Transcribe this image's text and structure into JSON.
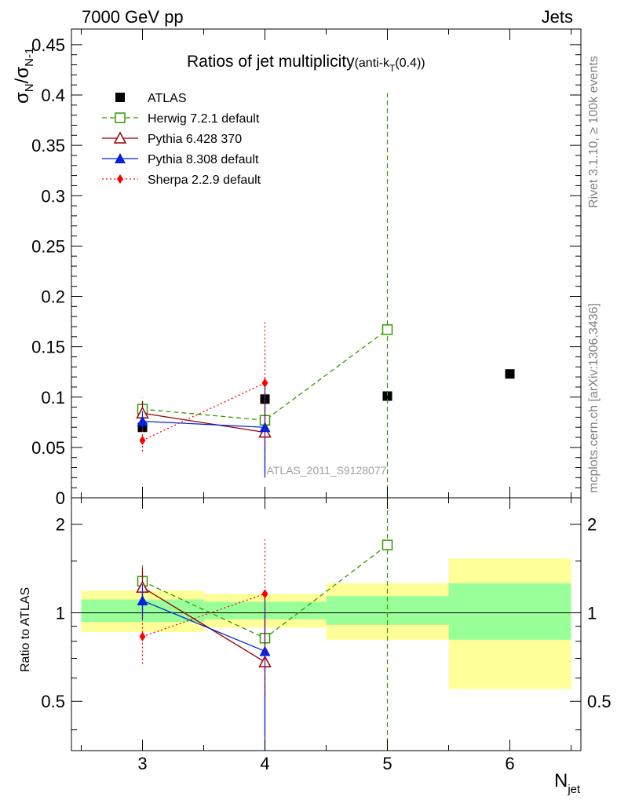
{
  "header": {
    "left": "7000 GeV pp",
    "right": "Jets"
  },
  "side_text": {
    "rivet": "Rivet 3.1.10, ≥ 100k events",
    "mcplots": "mcplots.cern.ch [arXiv:1306.3436]"
  },
  "watermark": "ATLAS_2011_S9128077",
  "chart_data": [
    {
      "type": "scatter",
      "panel": "main",
      "title": "Ratios of jet multiplicity(anti-k_T(0.4))",
      "title_main": "Ratios of jet multiplicity",
      "title_small": "(anti-k",
      "title_sub": "T",
      "title_tail": "(0.4))",
      "ylabel": "σN/σN-1",
      "ylabel_sigma1": "σ",
      "ylabel_sub1": "N",
      "ylabel_slash": "/σ",
      "ylabel_sub2": "N-1",
      "xlim": [
        2.42,
        6.58
      ],
      "ylim": [
        0,
        0.4655
      ],
      "yticks": [
        {
          "v": 0,
          "label": "0"
        },
        {
          "v": 0.05,
          "label": "0.05"
        },
        {
          "v": 0.1,
          "label": "0.1"
        },
        {
          "v": 0.15,
          "label": "0.15"
        },
        {
          "v": 0.2,
          "label": "0.2"
        },
        {
          "v": 0.25,
          "label": "0.25"
        },
        {
          "v": 0.3,
          "label": "0.3"
        },
        {
          "v": 0.35,
          "label": "0.35"
        },
        {
          "v": 0.4,
          "label": "0.4"
        },
        {
          "v": 0.45,
          "label": "0.45"
        }
      ],
      "series": [
        {
          "name": "ATLAS",
          "color": "#000000",
          "marker": "square-filled",
          "line": "none",
          "points": [
            {
              "x": 3,
              "y": 0.07,
              "err": 0.004
            },
            {
              "x": 4,
              "y": 0.098,
              "err": 0.004
            },
            {
              "x": 5,
              "y": 0.101,
              "err": 0.003
            },
            {
              "x": 6,
              "y": 0.123,
              "err": 0.003
            }
          ]
        },
        {
          "name": "Herwig 7.2.1 default",
          "color": "#339900",
          "marker": "square-open",
          "line": "dashed",
          "points": [
            {
              "x": 3,
              "y": 0.088,
              "err": 0.012
            },
            {
              "x": 4,
              "y": 0.077,
              "err": 0.04
            },
            {
              "x": 5,
              "y": 0.167,
              "err": 0.235
            }
          ]
        },
        {
          "name": "Pythia 6.428 370",
          "color": "#990000",
          "marker": "triangle-open",
          "line": "solid",
          "points": [
            {
              "x": 3,
              "y": 0.084,
              "err": 0.012
            },
            {
              "x": 4,
              "y": 0.065,
              "err": 0.04
            }
          ]
        },
        {
          "name": "Pythia 8.308 default",
          "color": "#0022dd",
          "marker": "triangle-filled",
          "line": "solid",
          "points": [
            {
              "x": 3,
              "y": 0.076,
              "err": 0.01
            },
            {
              "x": 4,
              "y": 0.07,
              "err": 0.05
            }
          ]
        },
        {
          "name": "Sherpa 2.2.9 default",
          "color": "#ff0000",
          "marker": "diamond-filled",
          "line": "dotted",
          "points": [
            {
              "x": 3,
              "y": 0.057,
              "err": 0.011
            },
            {
              "x": 4,
              "y": 0.114,
              "err": 0.062
            }
          ]
        }
      ]
    },
    {
      "type": "scatter",
      "panel": "ratio",
      "ylabel": "Ratio to ATLAS",
      "xlabel": "N_jet",
      "xlabel_main": "N",
      "xlabel_sub": "jet",
      "xlim": [
        2.42,
        6.58
      ],
      "ylim": [
        0.34,
        2.46
      ],
      "xticks": [
        {
          "v": 3,
          "label": "3"
        },
        {
          "v": 4,
          "label": "4"
        },
        {
          "v": 5,
          "label": "5"
        },
        {
          "v": 6,
          "label": "6"
        }
      ],
      "yticks": [
        {
          "v": 0.5,
          "label": "0.5"
        },
        {
          "v": 1,
          "label": "1"
        },
        {
          "v": 2,
          "label": "2"
        }
      ],
      "bands": [
        {
          "x0": 2.5,
          "x1": 3.5,
          "inner": [
            0.93,
            1.11
          ],
          "outer": [
            0.86,
            1.19
          ]
        },
        {
          "x0": 3.5,
          "x1": 4.5,
          "inner": [
            0.95,
            1.09
          ],
          "outer": [
            0.89,
            1.16
          ]
        },
        {
          "x0": 4.5,
          "x1": 5.5,
          "inner": [
            0.91,
            1.14
          ],
          "outer": [
            0.81,
            1.26
          ]
        },
        {
          "x0": 5.5,
          "x1": 6.5,
          "inner": [
            0.81,
            1.26
          ],
          "outer": [
            0.55,
            1.53
          ]
        }
      ],
      "series": [
        {
          "name": "Herwig 7.2.1 default",
          "color": "#339900",
          "marker": "square-open",
          "line": "dashed",
          "points": [
            {
              "x": 3,
              "y": 1.28,
              "err": 0.17
            },
            {
              "x": 4,
              "y": 0.82,
              "err": 0.3
            },
            {
              "x": 5,
              "y": 1.7,
              "err": 2.4
            }
          ]
        },
        {
          "name": "Pythia 6.428 370",
          "color": "#990000",
          "marker": "triangle-open",
          "line": "solid",
          "points": [
            {
              "x": 3,
              "y": 1.22,
              "err": 0.2
            },
            {
              "x": 4,
              "y": 0.68,
              "err": 0.3
            }
          ]
        },
        {
          "name": "Pythia 8.308 default",
          "color": "#0022dd",
          "marker": "triangle-filled",
          "line": "solid",
          "points": [
            {
              "x": 3,
              "y": 1.1,
              "err": 0.15
            },
            {
              "x": 4,
              "y": 0.74,
              "err": 0.4
            }
          ]
        },
        {
          "name": "Sherpa 2.2.9 default",
          "color": "#ff0000",
          "marker": "diamond-filled",
          "line": "dotted",
          "points": [
            {
              "x": 3,
              "y": 0.83,
              "err": 0.16
            },
            {
              "x": 4,
              "y": 1.16,
              "err": 0.63
            }
          ]
        }
      ]
    }
  ],
  "colors": {
    "band_inner": "#99ff99",
    "band_outer": "#ffff99"
  }
}
